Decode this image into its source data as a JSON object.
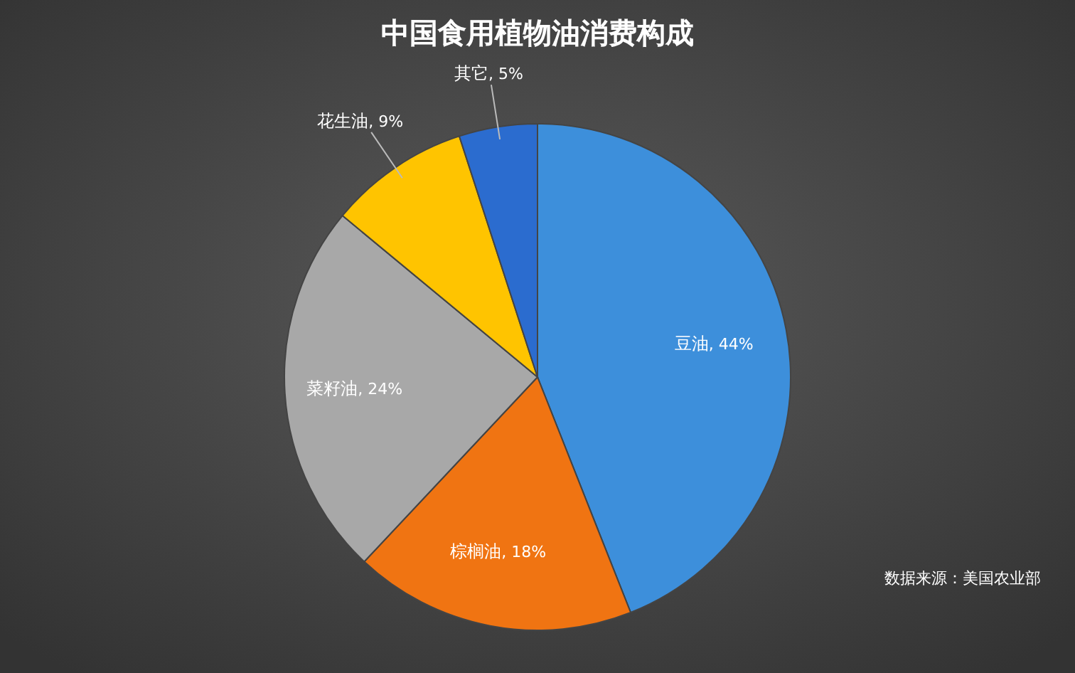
{
  "chart_data": {
    "type": "pie",
    "title": "中国食用植物油消费构成",
    "categories": [
      "豆油",
      "棕榈油",
      "菜籽油",
      "花生油",
      "其它"
    ],
    "values": [
      44,
      18,
      24,
      9,
      5
    ],
    "colors": [
      "#3d8fdb",
      "#f07412",
      "#a8a8a8",
      "#ffc400",
      "#2b6ccf"
    ],
    "value_labels": [
      ", 44%",
      ", 18%",
      ", 24%",
      ", 9%",
      ", 5%"
    ],
    "legend": false,
    "annotations": [
      "数据来源：美国农业部"
    ]
  }
}
